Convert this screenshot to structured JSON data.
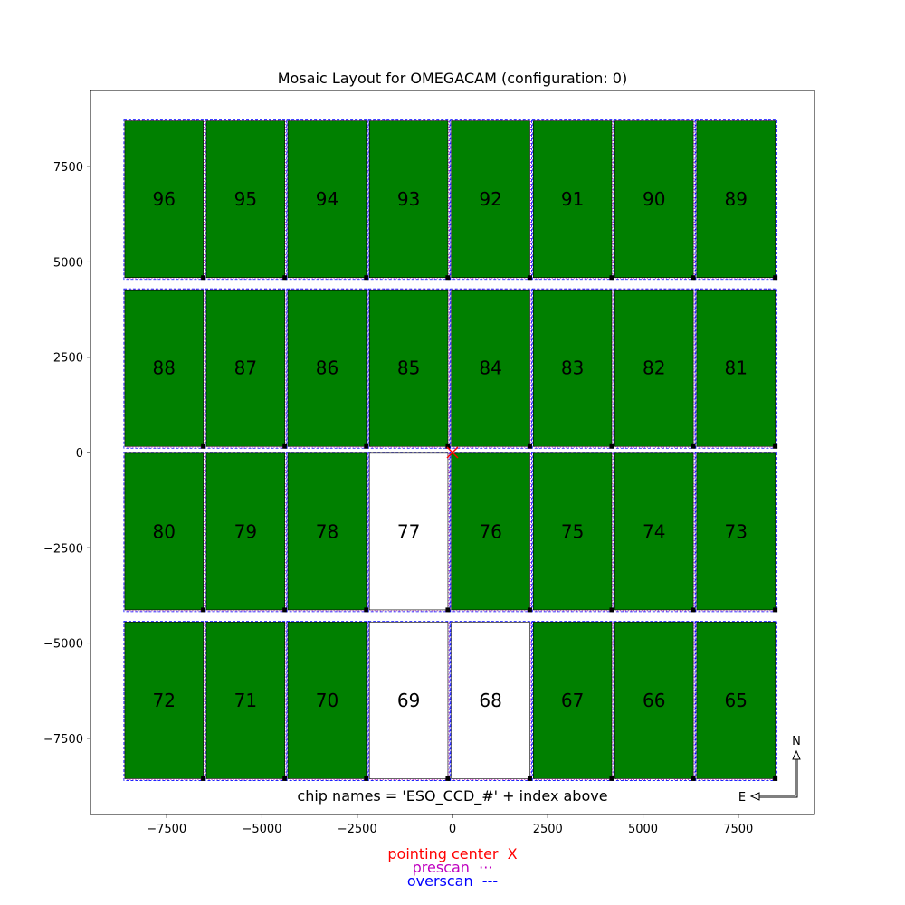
{
  "chart_data": {
    "type": "mosaic",
    "title": "Mosaic Layout for OMEGACAM (configuration: 0)",
    "xlim": [
      -9500,
      9500
    ],
    "ylim": [
      -9500,
      9500
    ],
    "xticks": [
      -7500,
      -5000,
      -2500,
      0,
      2500,
      5000,
      7500
    ],
    "yticks": [
      -7500,
      -5000,
      -2500,
      0,
      2500,
      5000,
      7500
    ],
    "xtick_labels": [
      "−7500",
      "−5000",
      "−2500",
      "0",
      "2500",
      "5000",
      "7500"
    ],
    "ytick_labels": [
      "−7500",
      "−5000",
      "−2500",
      "0",
      "2500",
      "5000",
      "7500"
    ],
    "chip_colors": {
      "default": "#008000",
      "highlight": "#ffffff"
    },
    "chips": [
      {
        "index": "96",
        "x0": -8600,
        "x1": -6540,
        "y0": 4590,
        "y1": 8700,
        "fill": "green"
      },
      {
        "index": "95",
        "x0": -6460,
        "x1": -4400,
        "y0": 4590,
        "y1": 8700,
        "fill": "green"
      },
      {
        "index": "94",
        "x0": -4320,
        "x1": -2260,
        "y0": 4590,
        "y1": 8700,
        "fill": "green"
      },
      {
        "index": "93",
        "x0": -2180,
        "x1": -120,
        "y0": 4590,
        "y1": 8700,
        "fill": "green"
      },
      {
        "index": "92",
        "x0": -30,
        "x1": 2030,
        "y0": 4590,
        "y1": 8700,
        "fill": "green"
      },
      {
        "index": "91",
        "x0": 2120,
        "x1": 4180,
        "y0": 4590,
        "y1": 8700,
        "fill": "green"
      },
      {
        "index": "90",
        "x0": 4260,
        "x1": 6320,
        "y0": 4590,
        "y1": 8700,
        "fill": "green"
      },
      {
        "index": "89",
        "x0": 6410,
        "x1": 8470,
        "y0": 4590,
        "y1": 8700,
        "fill": "green"
      },
      {
        "index": "88",
        "x0": -8600,
        "x1": -6540,
        "y0": 160,
        "y1": 4270,
        "fill": "green"
      },
      {
        "index": "87",
        "x0": -6460,
        "x1": -4400,
        "y0": 160,
        "y1": 4270,
        "fill": "green"
      },
      {
        "index": "86",
        "x0": -4320,
        "x1": -2260,
        "y0": 160,
        "y1": 4270,
        "fill": "green"
      },
      {
        "index": "85",
        "x0": -2180,
        "x1": -120,
        "y0": 160,
        "y1": 4270,
        "fill": "green"
      },
      {
        "index": "84",
        "x0": -30,
        "x1": 2030,
        "y0": 160,
        "y1": 4270,
        "fill": "green"
      },
      {
        "index": "83",
        "x0": 2120,
        "x1": 4180,
        "y0": 160,
        "y1": 4270,
        "fill": "green"
      },
      {
        "index": "82",
        "x0": 4260,
        "x1": 6320,
        "y0": 160,
        "y1": 4270,
        "fill": "green"
      },
      {
        "index": "81",
        "x0": 6410,
        "x1": 8470,
        "y0": 160,
        "y1": 4270,
        "fill": "green"
      },
      {
        "index": "80",
        "x0": -8600,
        "x1": -6540,
        "y0": -4130,
        "y1": -20,
        "fill": "green"
      },
      {
        "index": "79",
        "x0": -6460,
        "x1": -4400,
        "y0": -4130,
        "y1": -20,
        "fill": "green"
      },
      {
        "index": "78",
        "x0": -4320,
        "x1": -2260,
        "y0": -4130,
        "y1": -20,
        "fill": "green"
      },
      {
        "index": "77",
        "x0": -2180,
        "x1": -120,
        "y0": -4130,
        "y1": -20,
        "fill": "white"
      },
      {
        "index": "76",
        "x0": -30,
        "x1": 2030,
        "y0": -4130,
        "y1": -20,
        "fill": "green"
      },
      {
        "index": "75",
        "x0": 2120,
        "x1": 4180,
        "y0": -4130,
        "y1": -20,
        "fill": "green"
      },
      {
        "index": "74",
        "x0": 4260,
        "x1": 6320,
        "y0": -4130,
        "y1": -20,
        "fill": "green"
      },
      {
        "index": "73",
        "x0": 6410,
        "x1": 8470,
        "y0": -4130,
        "y1": -20,
        "fill": "green"
      },
      {
        "index": "72",
        "x0": -8600,
        "x1": -6540,
        "y0": -8560,
        "y1": -4450,
        "fill": "green"
      },
      {
        "index": "71",
        "x0": -6460,
        "x1": -4400,
        "y0": -8560,
        "y1": -4450,
        "fill": "green"
      },
      {
        "index": "70",
        "x0": -4320,
        "x1": -2260,
        "y0": -8560,
        "y1": -4450,
        "fill": "green"
      },
      {
        "index": "69",
        "x0": -2180,
        "x1": -120,
        "y0": -8560,
        "y1": -4450,
        "fill": "white"
      },
      {
        "index": "68",
        "x0": -30,
        "x1": 2030,
        "y0": -8560,
        "y1": -4450,
        "fill": "white"
      },
      {
        "index": "67",
        "x0": 2120,
        "x1": 4180,
        "y0": -8560,
        "y1": -4450,
        "fill": "green"
      },
      {
        "index": "66",
        "x0": 4260,
        "x1": 6320,
        "y0": -8560,
        "y1": -4450,
        "fill": "green"
      },
      {
        "index": "65",
        "x0": 6410,
        "x1": 8470,
        "y0": -8560,
        "y1": -4450,
        "fill": "green"
      }
    ],
    "pointing_center": {
      "x": 0,
      "y": 0,
      "color": "#ff0000"
    },
    "annotation": "chip names = 'ESO_CCD_#' + index above",
    "compass": {
      "north": "N",
      "east": "E"
    }
  },
  "legend": [
    {
      "label": "pointing center",
      "symbol": "X",
      "color": "#ff0000"
    },
    {
      "label": "prescan",
      "symbol": "···",
      "color": "#bf00bf"
    },
    {
      "label": "overscan",
      "symbol": "---",
      "color": "#0000ff"
    }
  ]
}
